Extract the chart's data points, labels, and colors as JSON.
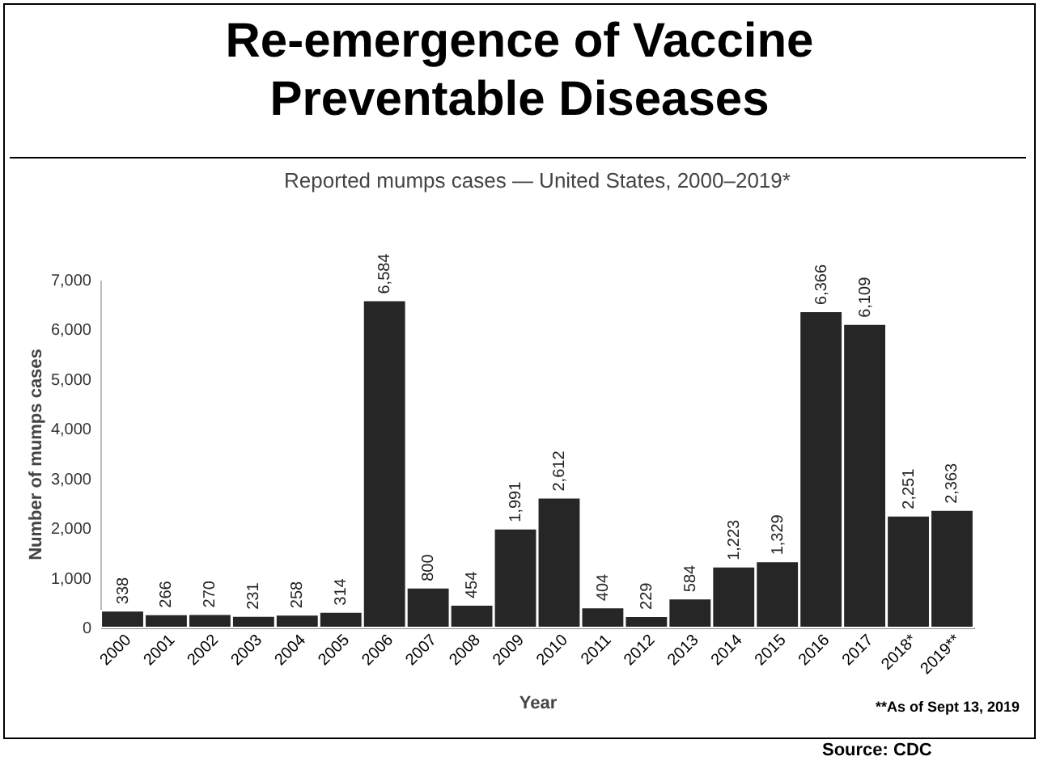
{
  "chart_data": {
    "type": "bar",
    "title": "Re-emergence of Vaccine Preventable Diseases",
    "subtitle": "Reported mumps cases — United States, 2000–2019*",
    "xlabel": "Year",
    "ylabel": "Number of mumps cases",
    "categories": [
      "2000",
      "2001",
      "2002",
      "2003",
      "2004",
      "2005",
      "2006",
      "2007",
      "2008",
      "2009",
      "2010",
      "2011",
      "2012",
      "2013",
      "2014",
      "2015",
      "2016",
      "2017",
      "2018*",
      "2019**"
    ],
    "values": [
      338,
      266,
      270,
      231,
      258,
      314,
      6584,
      800,
      454,
      1991,
      2612,
      404,
      229,
      584,
      1223,
      1329,
      6366,
      6109,
      2251,
      2363
    ],
    "value_labels": [
      "338",
      "266",
      "270",
      "231",
      "258",
      "314",
      "6,584",
      "800",
      "454",
      "1,991",
      "2,612",
      "404",
      "229",
      "584",
      "1,223",
      "1,329",
      "6,366",
      "6,109",
      "2,251",
      "2,363"
    ],
    "color": "#262626",
    "ylim": [
      0,
      7000
    ],
    "yticks": [
      0,
      {
        "value": 1000,
        "label": "1,000"
      },
      {
        "value": 2000,
        "label": "2,000"
      },
      {
        "value": 3000,
        "label": "3,000"
      },
      {
        "value": 4000,
        "label": "4,000"
      },
      {
        "value": 5000,
        "label": "5,000"
      },
      {
        "value": 6000,
        "label": "6,000"
      },
      {
        "value": 7000,
        "label": "7,000"
      }
    ],
    "annotations": [
      "**As of Sept 13, 2019",
      "Source: CDC"
    ]
  }
}
